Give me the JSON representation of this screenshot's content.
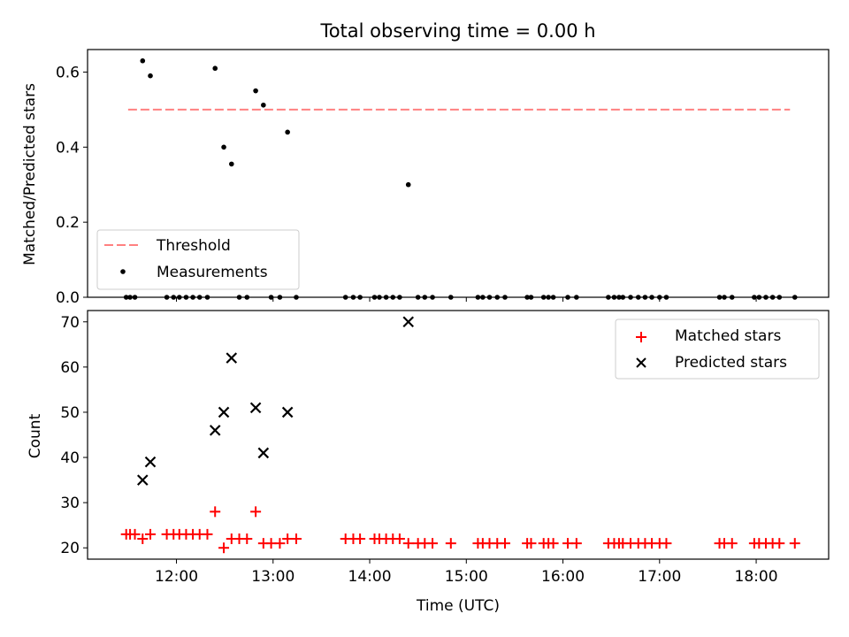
{
  "chart_data": [
    {
      "type": "scatter",
      "title": "Total observing time = 0.00 h",
      "ylabel": "Matched/Predicted stars",
      "xlabel": "",
      "ylim": [
        0.0,
        0.66
      ],
      "yticks": [
        "0.0",
        "0.2",
        "0.4",
        "0.6"
      ],
      "xlim": [
        11.08,
        18.75
      ],
      "threshold": {
        "name": "Threshold",
        "value": 0.5,
        "x": [
          11.5,
          18.35
        ],
        "color": "#ff8080"
      },
      "series": [
        {
          "name": "Measurements",
          "color": "#000000",
          "points": [
            [
              11.65,
              0.63
            ],
            [
              11.73,
              0.59
            ],
            [
              12.4,
              0.61
            ],
            [
              12.49,
              0.4
            ],
            [
              12.57,
              0.355
            ],
            [
              12.82,
              0.55
            ],
            [
              12.9,
              0.512
            ],
            [
              13.15,
              0.44
            ],
            [
              14.4,
              0.3
            ],
            [
              11.48,
              0
            ],
            [
              11.52,
              0
            ],
            [
              11.57,
              0
            ],
            [
              11.9,
              0
            ],
            [
              11.97,
              0
            ],
            [
              12.03,
              0
            ],
            [
              12.1,
              0
            ],
            [
              12.17,
              0
            ],
            [
              12.24,
              0
            ],
            [
              12.32,
              0
            ],
            [
              12.65,
              0
            ],
            [
              12.73,
              0
            ],
            [
              12.98,
              0
            ],
            [
              13.07,
              0
            ],
            [
              13.24,
              0
            ],
            [
              13.75,
              0
            ],
            [
              13.83,
              0
            ],
            [
              13.9,
              0
            ],
            [
              14.05,
              0
            ],
            [
              14.1,
              0
            ],
            [
              14.17,
              0
            ],
            [
              14.24,
              0
            ],
            [
              14.31,
              0
            ],
            [
              14.5,
              0
            ],
            [
              14.57,
              0
            ],
            [
              14.65,
              0
            ],
            [
              14.84,
              0
            ],
            [
              15.12,
              0
            ],
            [
              15.17,
              0
            ],
            [
              15.24,
              0
            ],
            [
              15.32,
              0
            ],
            [
              15.4,
              0
            ],
            [
              15.63,
              0
            ],
            [
              15.67,
              0
            ],
            [
              15.8,
              0
            ],
            [
              15.85,
              0
            ],
            [
              15.9,
              0
            ],
            [
              16.05,
              0
            ],
            [
              16.14,
              0
            ],
            [
              16.47,
              0
            ],
            [
              16.53,
              0
            ],
            [
              16.58,
              0
            ],
            [
              16.62,
              0
            ],
            [
              16.7,
              0
            ],
            [
              16.78,
              0
            ],
            [
              16.85,
              0
            ],
            [
              16.92,
              0
            ],
            [
              17.0,
              0
            ],
            [
              17.07,
              0
            ],
            [
              17.62,
              0
            ],
            [
              17.67,
              0
            ],
            [
              17.75,
              0
            ],
            [
              17.98,
              0
            ],
            [
              18.03,
              0
            ],
            [
              18.1,
              0
            ],
            [
              18.17,
              0
            ],
            [
              18.24,
              0
            ],
            [
              18.4,
              0
            ]
          ]
        }
      ],
      "legend": {
        "position": "lower-left",
        "entries": [
          "Threshold",
          "Measurements"
        ]
      }
    },
    {
      "type": "scatter",
      "title": "",
      "ylabel": "Count",
      "xlabel": "Time (UTC)",
      "ylim": [
        17.5,
        72.5
      ],
      "yticks": [
        "20",
        "30",
        "40",
        "50",
        "60",
        "70"
      ],
      "xlim": [
        11.08,
        18.75
      ],
      "xticks": [
        {
          "v": 12,
          "label": "12:00"
        },
        {
          "v": 13,
          "label": "13:00"
        },
        {
          "v": 14,
          "label": "14:00"
        },
        {
          "v": 15,
          "label": "15:00"
        },
        {
          "v": 16,
          "label": "16:00"
        },
        {
          "v": 17,
          "label": "17:00"
        },
        {
          "v": 18,
          "label": "18:00"
        }
      ],
      "series": [
        {
          "name": "Matched stars",
          "marker": "plus",
          "color": "#ff0000",
          "points": [
            [
              11.48,
              23
            ],
            [
              11.52,
              23
            ],
            [
              11.57,
              23
            ],
            [
              11.65,
              22
            ],
            [
              11.73,
              23
            ],
            [
              11.9,
              23
            ],
            [
              11.97,
              23
            ],
            [
              12.03,
              23
            ],
            [
              12.1,
              23
            ],
            [
              12.17,
              23
            ],
            [
              12.24,
              23
            ],
            [
              12.32,
              23
            ],
            [
              12.4,
              28
            ],
            [
              12.49,
              20
            ],
            [
              12.57,
              22
            ],
            [
              12.65,
              22
            ],
            [
              12.73,
              22
            ],
            [
              12.82,
              28
            ],
            [
              12.9,
              21
            ],
            [
              12.98,
              21
            ],
            [
              13.07,
              21
            ],
            [
              13.15,
              22
            ],
            [
              13.24,
              22
            ],
            [
              13.75,
              22
            ],
            [
              13.83,
              22
            ],
            [
              13.9,
              22
            ],
            [
              14.05,
              22
            ],
            [
              14.1,
              22
            ],
            [
              14.17,
              22
            ],
            [
              14.24,
              22
            ],
            [
              14.31,
              22
            ],
            [
              14.4,
              21
            ],
            [
              14.5,
              21
            ],
            [
              14.57,
              21
            ],
            [
              14.65,
              21
            ],
            [
              14.84,
              21
            ],
            [
              15.12,
              21
            ],
            [
              15.17,
              21
            ],
            [
              15.24,
              21
            ],
            [
              15.32,
              21
            ],
            [
              15.4,
              21
            ],
            [
              15.63,
              21
            ],
            [
              15.67,
              21
            ],
            [
              15.8,
              21
            ],
            [
              15.85,
              21
            ],
            [
              15.9,
              21
            ],
            [
              16.05,
              21
            ],
            [
              16.14,
              21
            ],
            [
              16.47,
              21
            ],
            [
              16.53,
              21
            ],
            [
              16.58,
              21
            ],
            [
              16.62,
              21
            ],
            [
              16.7,
              21
            ],
            [
              16.78,
              21
            ],
            [
              16.85,
              21
            ],
            [
              16.92,
              21
            ],
            [
              17.0,
              21
            ],
            [
              17.07,
              21
            ],
            [
              17.62,
              21
            ],
            [
              17.67,
              21
            ],
            [
              17.75,
              21
            ],
            [
              17.98,
              21
            ],
            [
              18.03,
              21
            ],
            [
              18.1,
              21
            ],
            [
              18.17,
              21
            ],
            [
              18.24,
              21
            ],
            [
              18.4,
              21
            ]
          ]
        },
        {
          "name": "Predicted stars",
          "marker": "x",
          "color": "#000000",
          "points": [
            [
              11.65,
              35
            ],
            [
              11.73,
              39
            ],
            [
              12.4,
              46
            ],
            [
              12.49,
              50
            ],
            [
              12.57,
              62
            ],
            [
              12.82,
              51
            ],
            [
              12.9,
              41
            ],
            [
              13.15,
              50
            ],
            [
              14.4,
              70
            ]
          ]
        }
      ],
      "legend": {
        "position": "top-right",
        "entries": [
          "Matched stars",
          "Predicted stars"
        ]
      }
    }
  ]
}
